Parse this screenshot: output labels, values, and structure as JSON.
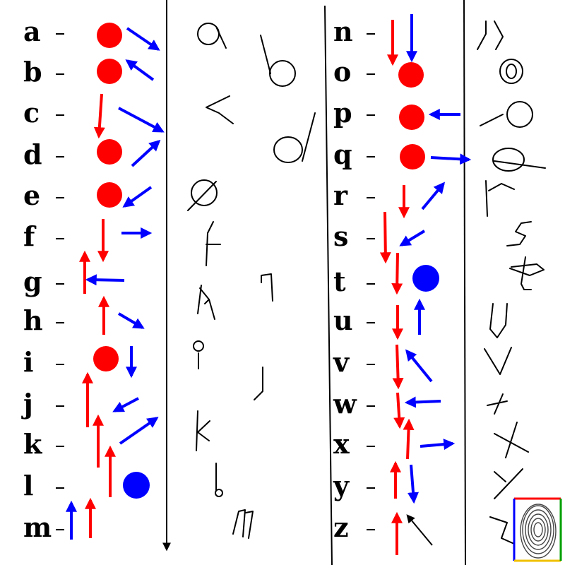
{
  "title": "",
  "colors": {
    "red": "#ff0000",
    "blue": "#0000ff",
    "ink": "#000000"
  },
  "entries": [
    {
      "letter": "a"
    },
    {
      "letter": "b"
    },
    {
      "letter": "c"
    },
    {
      "letter": "d"
    },
    {
      "letter": "e"
    },
    {
      "letter": "f"
    },
    {
      "letter": "g"
    },
    {
      "letter": "h"
    },
    {
      "letter": "i"
    },
    {
      "letter": "j"
    },
    {
      "letter": "k"
    },
    {
      "letter": "l"
    },
    {
      "letter": "m"
    },
    {
      "letter": "n"
    },
    {
      "letter": "o"
    },
    {
      "letter": "p"
    },
    {
      "letter": "q"
    },
    {
      "letter": "r"
    },
    {
      "letter": "s"
    },
    {
      "letter": "t"
    },
    {
      "letter": "u"
    },
    {
      "letter": "v"
    },
    {
      "letter": "w"
    },
    {
      "letter": "x"
    },
    {
      "letter": "y"
    },
    {
      "letter": "z"
    }
  ],
  "logo": {
    "name": "fingerprint-logo"
  }
}
